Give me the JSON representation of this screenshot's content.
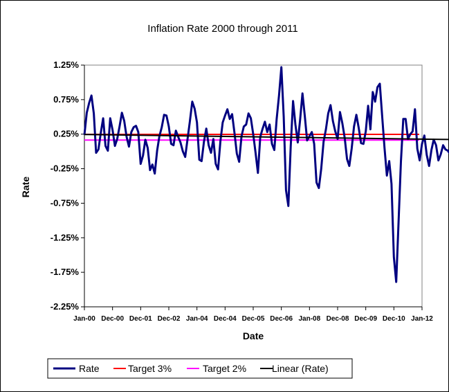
{
  "chart_data": {
    "type": "line",
    "title": "Inflation Rate 2000 through 2011",
    "xlabel": "Date",
    "ylabel": "Rate",
    "ylim": [
      -2.25,
      1.25
    ],
    "x_range": [
      "Jan-00",
      "Jan-12"
    ],
    "y_ticks": [
      "1.25%",
      "0.75%",
      "0.25%",
      "-0.25%",
      "-0.75%",
      "-1.25%",
      "-1.75%",
      "-2.25%"
    ],
    "x_ticks": [
      "Jan-00",
      "Dec-00",
      "Dec-01",
      "Dec-02",
      "Jan-04",
      "Dec-04",
      "Dec-05",
      "Dec-06",
      "Jan-08",
      "Dec-08",
      "Dec-09",
      "Dec-10",
      "Jan-12"
    ],
    "grid": false,
    "legend_position": "bottom",
    "series": [
      {
        "name": "Rate",
        "color": "#000080",
        "x_start": "Jan-00",
        "frequency": "monthly",
        "values": [
          0.24,
          0.56,
          0.7,
          0.81,
          0.55,
          -0.02,
          0.03,
          0.27,
          0.48,
          0.08,
          0.01,
          0.48,
          0.31,
          0.08,
          0.18,
          0.36,
          0.56,
          0.44,
          0.21,
          0.07,
          0.28,
          0.35,
          0.37,
          0.28,
          -0.18,
          -0.06,
          0.17,
          0.05,
          -0.27,
          -0.19,
          -0.32,
          0.01,
          0.22,
          0.35,
          0.53,
          0.52,
          0.36,
          0.11,
          0.09,
          0.3,
          0.21,
          0.13,
          0.0,
          -0.08,
          0.18,
          0.44,
          0.72,
          0.62,
          0.42,
          -0.12,
          -0.14,
          0.14,
          0.33,
          0.09,
          -0.02,
          0.18,
          -0.18,
          -0.26,
          0.15,
          0.42,
          0.52,
          0.61,
          0.47,
          0.54,
          0.27,
          -0.03,
          -0.15,
          0.22,
          0.36,
          0.39,
          0.55,
          0.48,
          0.25,
          -0.02,
          -0.31,
          0.21,
          0.33,
          0.43,
          0.28,
          0.39,
          0.11,
          0.02,
          0.47,
          0.81,
          1.22,
          0.5,
          -0.56,
          -0.79,
          0.07,
          0.73,
          0.39,
          0.13,
          0.46,
          0.84,
          0.51,
          0.16,
          0.22,
          0.28,
          0.11,
          -0.45,
          -0.53,
          -0.25,
          0.14,
          0.32,
          0.55,
          0.67,
          0.44,
          0.29,
          0.18,
          0.57,
          0.41,
          0.2,
          -0.11,
          -0.21,
          0.04,
          0.36,
          0.53,
          0.34,
          0.12,
          0.11,
          0.29,
          0.66,
          0.32,
          0.86,
          0.72,
          0.93,
          0.98,
          0.51,
          0.05,
          -0.35,
          -0.14,
          -0.47,
          -1.53,
          -1.89,
          -1.02,
          -0.15,
          0.47,
          0.47,
          0.18,
          0.25,
          0.29,
          0.61,
          0.04,
          -0.13,
          0.11,
          0.23,
          -0.05,
          -0.21,
          0.02,
          0.17,
          0.09,
          -0.13,
          -0.04,
          0.09,
          0.03,
          0.01,
          -0.04,
          0.04,
          -0.03,
          0.05,
          0.24,
          0.45,
          0.55,
          0.96,
          0.73,
          0.45,
          0.33,
          -0.04,
          0.03,
          0.13,
          0.27,
          -0.04,
          -0.2,
          -0.08
        ]
      },
      {
        "name": "Target 3%",
        "color": "#ff0000",
        "constant": 0.247
      },
      {
        "name": "Target 2%",
        "color": "#ff00ff",
        "constant": 0.165
      },
      {
        "name": "Linear (Rate)",
        "color": "#000000",
        "trend_start": 0.245,
        "trend_end": 0.165
      }
    ]
  }
}
